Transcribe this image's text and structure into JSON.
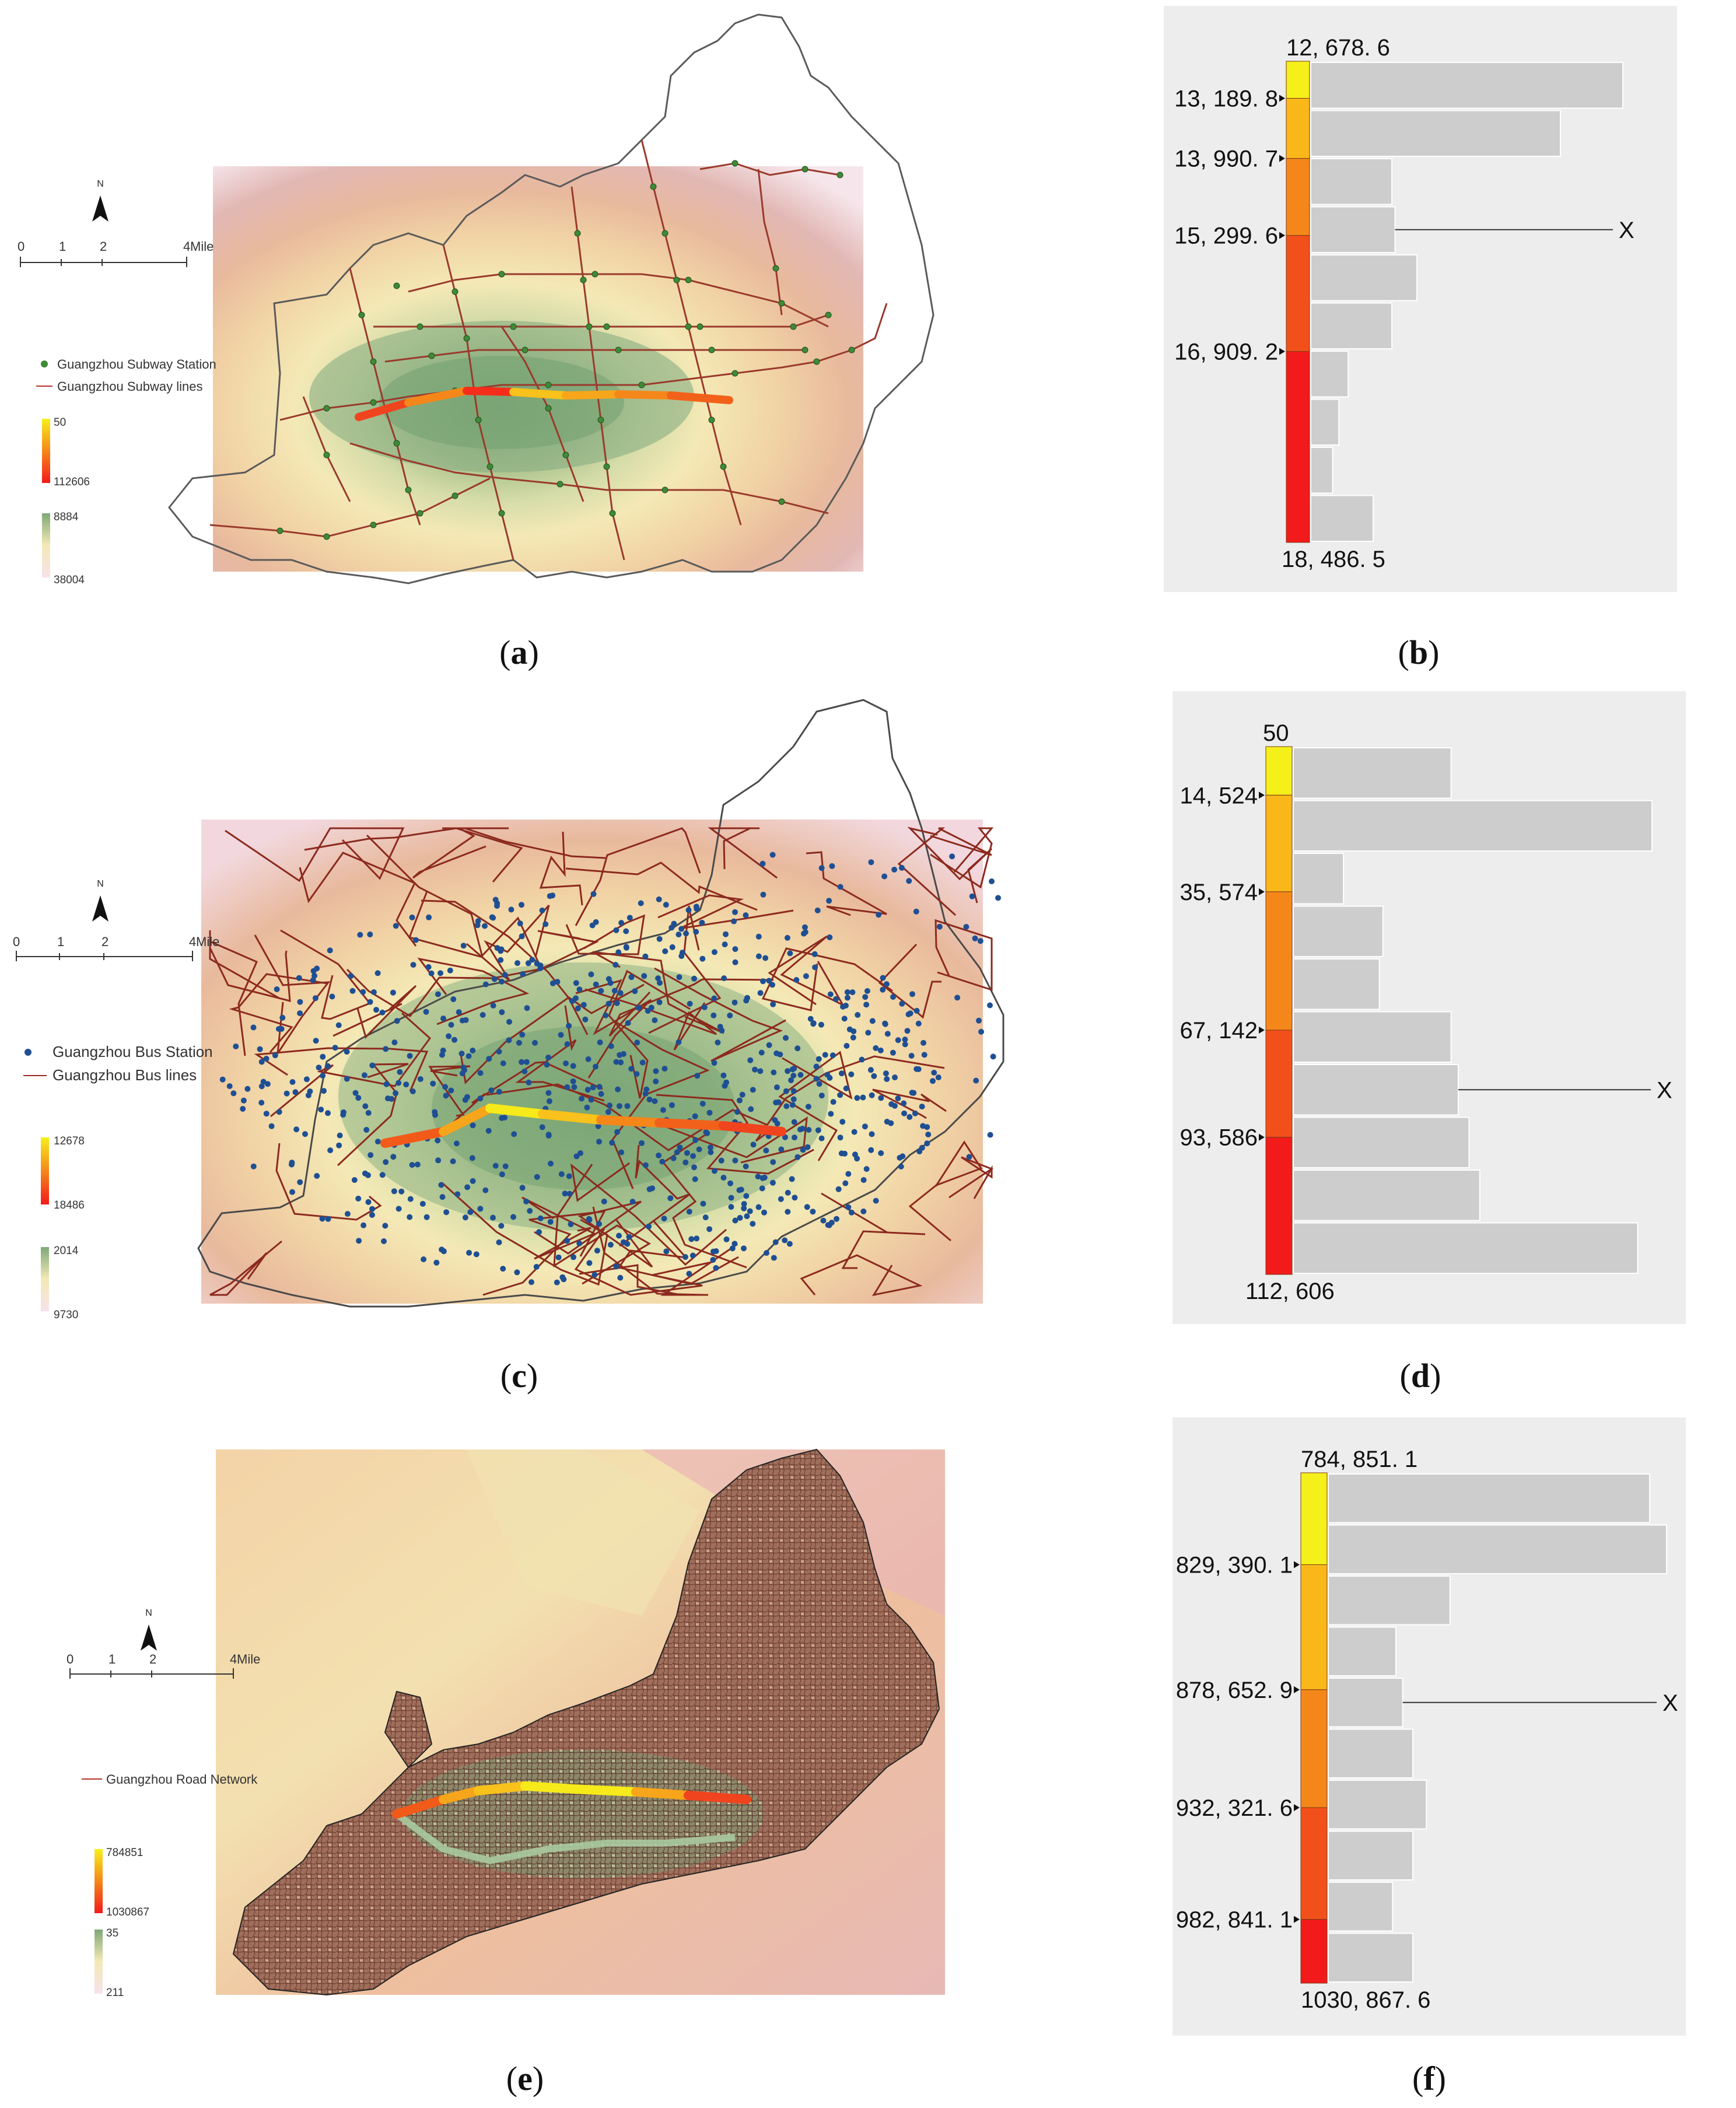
{
  "panels": {
    "a": {
      "caption": "a",
      "scale_label": "Mile",
      "scale_ticks": [
        "0",
        "1",
        "2",
        "4"
      ],
      "north": "N",
      "legend": [
        {
          "label": "Guangzhou Subway Station",
          "color": "#3e8a36",
          "kind": "point"
        },
        {
          "label": "Guangzhou Subway lines",
          "color": "#b5312b",
          "kind": "line"
        }
      ],
      "ramp_hot": {
        "top": "50",
        "bottom": "112606"
      },
      "ramp_green": {
        "top": "8884",
        "bottom": "38004"
      }
    },
    "b": {
      "caption": "b",
      "class_labels": [
        "12, 678. 6",
        "13, 189. 8",
        "13, 990. 7",
        "15, 299. 6",
        "16, 909. 2",
        "18, 486. 5"
      ],
      "marker": "X",
      "chart_data": {
        "type": "bar",
        "title": "",
        "orientation": "horizontal",
        "categories": [
          "1",
          "2",
          "3",
          "4",
          "5",
          "6",
          "7",
          "8",
          "9",
          "10"
        ],
        "values": [
          100,
          80,
          26,
          27,
          34,
          26,
          12,
          9,
          7,
          20
        ],
        "value_unit": "relative length (% of longest bar)",
        "class_breaks": [
          12678.6,
          13189.8,
          13990.7,
          15299.6,
          16909.2,
          18486.5
        ],
        "marked_bar": 3
      }
    },
    "c": {
      "caption": "c",
      "scale_label": "Mile",
      "scale_ticks": [
        "0",
        "1",
        "2",
        "4"
      ],
      "north": "N",
      "legend": [
        {
          "label": "Guangzhou Bus Station",
          "color": "#1f4f93",
          "kind": "point"
        },
        {
          "label": "Guangzhou Bus lines",
          "color": "#9c2a22",
          "kind": "line"
        }
      ],
      "ramp_hot": {
        "top": "12678",
        "bottom": "18486"
      },
      "ramp_green": {
        "top": "2014",
        "bottom": "9730"
      }
    },
    "d": {
      "caption": "d",
      "class_labels": [
        "50",
        "14, 524",
        "35, 574",
        "67, 142",
        "93, 586",
        "112, 606"
      ],
      "marker": "X",
      "chart_data": {
        "type": "bar",
        "title": "",
        "orientation": "horizontal",
        "categories": [
          "1",
          "2",
          "3",
          "4",
          "5",
          "6",
          "7",
          "8",
          "9",
          "10"
        ],
        "values": [
          44,
          100,
          14,
          25,
          24,
          44,
          46,
          49,
          52,
          96
        ],
        "value_unit": "relative length (% of longest bar)",
        "class_breaks": [
          50,
          14524,
          35574,
          67142,
          93586,
          112606
        ],
        "marked_bar": 6
      }
    },
    "e": {
      "caption": "e",
      "scale_label": "Mile",
      "scale_ticks": [
        "0",
        "1",
        "2",
        "4"
      ],
      "north": "N",
      "legend": [
        {
          "label": "Guangzhou Road Network",
          "color": "#b5312b",
          "kind": "line"
        }
      ],
      "ramp_hot": {
        "top": "784851",
        "bottom": "1030867"
      },
      "ramp_green": {
        "top": "35",
        "bottom": "211"
      }
    },
    "f": {
      "caption": "f",
      "class_labels": [
        "784, 851. 1",
        "829, 390. 1",
        "878, 652. 9",
        "932, 321. 6",
        "982, 841. 1",
        "1030, 867. 6"
      ],
      "marker": "X",
      "chart_data": {
        "type": "bar",
        "title": "",
        "orientation": "horizontal",
        "categories": [
          "1",
          "2",
          "3",
          "4",
          "5",
          "6",
          "7",
          "8",
          "9",
          "10"
        ],
        "values": [
          95,
          100,
          36,
          20,
          22,
          25,
          29,
          25,
          19,
          25
        ],
        "value_unit": "relative length (% of longest bar)",
        "class_breaks": [
          784851.1,
          829390.1,
          878652.9,
          932321.6,
          982841.1,
          1030867.6
        ],
        "marked_bar": 4
      }
    }
  }
}
